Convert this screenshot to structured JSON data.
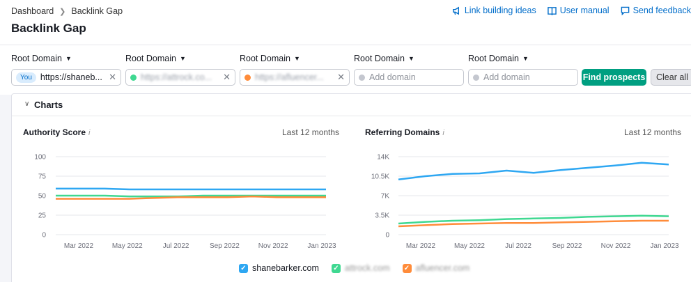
{
  "breadcrumb": {
    "home": "Dashboard",
    "current": "Backlink Gap"
  },
  "page_title": "Backlink Gap",
  "top_links": [
    {
      "label": "Link building ideas",
      "icon": "megaphone-icon"
    },
    {
      "label": "User manual",
      "icon": "book-icon"
    },
    {
      "label": "Send feedback",
      "icon": "chat-icon"
    }
  ],
  "filters": {
    "root_domain_label": "Root Domain",
    "you_badge": "You",
    "domains": [
      {
        "value": "https://shaneb...",
        "color": "#2ea7f2"
      },
      {
        "value": "https://attrock.co...",
        "color": "#3fd891"
      },
      {
        "value": "https://afluencer...",
        "color": "#ff8c3a"
      }
    ],
    "add_placeholder": "Add domain",
    "find_button": "Find prospects",
    "clear_button": "Clear all"
  },
  "charts_section": {
    "title": "Charts"
  },
  "chart_data": [
    {
      "type": "line",
      "title": "Authority Score",
      "period": "Last 12 months",
      "ylim": [
        0,
        100
      ],
      "yticks": [
        0,
        25,
        50,
        75,
        100
      ],
      "ytick_labels": [
        "0",
        "25",
        "50",
        "75",
        "100"
      ],
      "x_labels": [
        "Mar 2022",
        "May 2022",
        "Jul 2022",
        "Sep 2022",
        "Nov 2022",
        "Jan 2023"
      ],
      "series": [
        {
          "name": "shanebarker.com",
          "color": "#2ea7f2",
          "values": [
            59,
            59,
            59,
            58,
            58,
            58,
            58,
            58,
            58,
            58,
            58,
            58
          ]
        },
        {
          "name": "attrock.com",
          "color": "#3fd891",
          "values": [
            50,
            50,
            50,
            49,
            49,
            49,
            50,
            50,
            50,
            50,
            50,
            50
          ]
        },
        {
          "name": "afluencer.com",
          "color": "#ff8c3a",
          "values": [
            46,
            46,
            46,
            46,
            47,
            48,
            48,
            48,
            49,
            48,
            48,
            48
          ]
        }
      ]
    },
    {
      "type": "line",
      "title": "Referring Domains",
      "period": "Last 12 months",
      "ylim": [
        0,
        14000
      ],
      "yticks": [
        0,
        3500,
        7000,
        10500,
        14000
      ],
      "ytick_labels": [
        "0",
        "3.5K",
        "7K",
        "10.5K",
        "14K"
      ],
      "x_labels": [
        "Mar 2022",
        "May 2022",
        "Jul 2022",
        "Sep 2022",
        "Nov 2022",
        "Jan 2023"
      ],
      "series": [
        {
          "name": "shanebarker.com",
          "color": "#2ea7f2",
          "values": [
            9900,
            10500,
            10900,
            11000,
            11500,
            11100,
            11600,
            12000,
            12400,
            12900,
            12600
          ]
        },
        {
          "name": "attrock.com",
          "color": "#3fd891",
          "values": [
            2000,
            2300,
            2500,
            2600,
            2800,
            2900,
            3000,
            3200,
            3300,
            3400,
            3300
          ]
        },
        {
          "name": "afluencer.com",
          "color": "#ff8c3a",
          "values": [
            1500,
            1700,
            1900,
            2000,
            2100,
            2100,
            2200,
            2300,
            2400,
            2500,
            2500
          ]
        }
      ]
    }
  ],
  "legend": [
    {
      "label": "shanebarker.com",
      "color": "#2ea7f2"
    },
    {
      "label": "attrock.com",
      "color": "#3fd891"
    },
    {
      "label": "afluencer.com",
      "color": "#ff8c3a"
    }
  ]
}
